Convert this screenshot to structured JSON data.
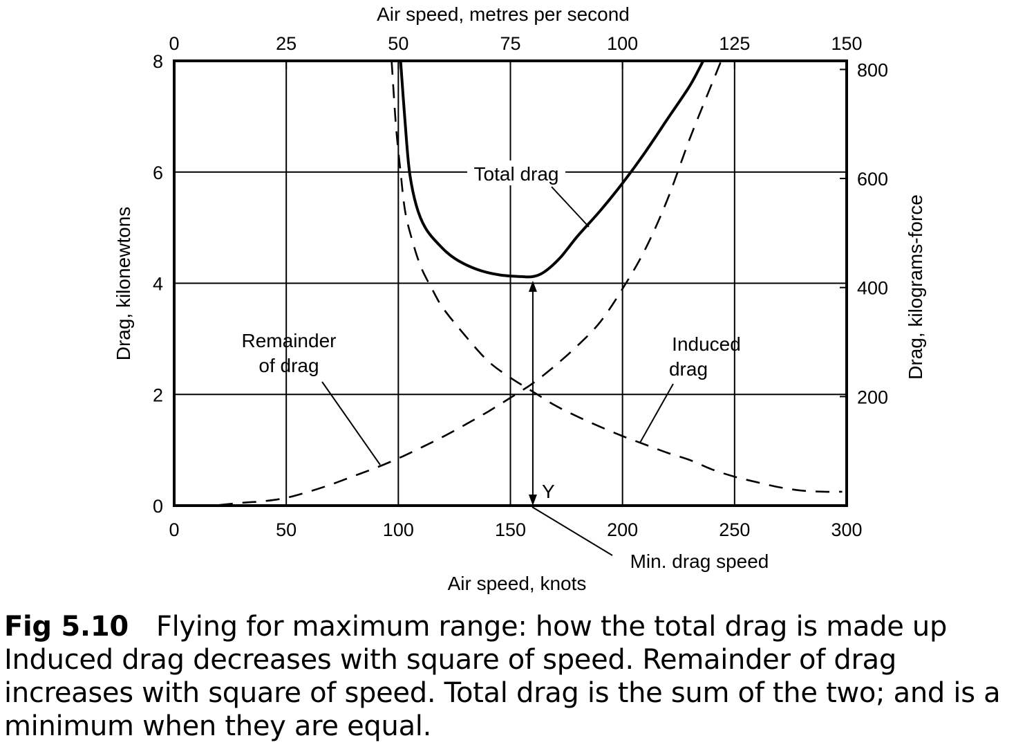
{
  "chart_data": {
    "type": "line",
    "x_axis_bottom": {
      "label": "Air speed, knots",
      "range": [
        0,
        300
      ],
      "ticks": [
        "0",
        "50",
        "100",
        "150",
        "200",
        "250",
        "300"
      ]
    },
    "x_axis_top": {
      "label": "Air speed, metres per second",
      "range": [
        0,
        150
      ],
      "ticks": [
        "0",
        "25",
        "50",
        "75",
        "100",
        "125",
        "150"
      ]
    },
    "y_axis_left": {
      "label": "Drag, kilonewtons",
      "range": [
        0,
        8
      ],
      "ticks": [
        "0",
        "2",
        "4",
        "6",
        "8"
      ]
    },
    "y_axis_right": {
      "label": "Drag, kilograms-force",
      "ticks": [
        "200",
        "400",
        "600",
        "800"
      ]
    },
    "grid": true,
    "series": [
      {
        "name": "Total drag",
        "style": "solid",
        "points": [
          [
            101,
            8.0
          ],
          [
            103,
            6.9
          ],
          [
            105,
            6.0
          ],
          [
            108,
            5.4
          ],
          [
            112,
            5.0
          ],
          [
            118,
            4.7
          ],
          [
            125,
            4.45
          ],
          [
            135,
            4.25
          ],
          [
            145,
            4.15
          ],
          [
            155,
            4.12
          ],
          [
            160,
            4.12
          ],
          [
            165,
            4.2
          ],
          [
            172,
            4.45
          ],
          [
            180,
            4.85
          ],
          [
            190,
            5.3
          ],
          [
            200,
            5.8
          ],
          [
            210,
            6.35
          ],
          [
            220,
            6.95
          ],
          [
            230,
            7.55
          ],
          [
            236,
            8.0
          ]
        ]
      },
      {
        "name": "Induced drag",
        "style": "dashed",
        "points": [
          [
            97,
            8.0
          ],
          [
            99,
            6.8
          ],
          [
            101,
            6.0
          ],
          [
            103,
            5.3
          ],
          [
            106,
            4.8
          ],
          [
            110,
            4.3
          ],
          [
            115,
            3.9
          ],
          [
            120,
            3.55
          ],
          [
            130,
            3.05
          ],
          [
            140,
            2.6
          ],
          [
            150,
            2.3
          ],
          [
            160,
            2.05
          ],
          [
            170,
            1.8
          ],
          [
            180,
            1.6
          ],
          [
            190,
            1.42
          ],
          [
            200,
            1.25
          ],
          [
            210,
            1.1
          ],
          [
            220,
            0.95
          ],
          [
            230,
            0.82
          ],
          [
            240,
            0.65
          ],
          [
            250,
            0.52
          ],
          [
            260,
            0.42
          ],
          [
            270,
            0.33
          ],
          [
            280,
            0.27
          ],
          [
            290,
            0.25
          ],
          [
            298,
            0.25
          ]
        ]
      },
      {
        "name": "Remainder of drag",
        "style": "dashed",
        "points": [
          [
            20,
            0.01
          ],
          [
            30,
            0.05
          ],
          [
            40,
            0.08
          ],
          [
            50,
            0.14
          ],
          [
            60,
            0.25
          ],
          [
            70,
            0.38
          ],
          [
            80,
            0.53
          ],
          [
            90,
            0.68
          ],
          [
            100,
            0.85
          ],
          [
            110,
            1.04
          ],
          [
            120,
            1.24
          ],
          [
            130,
            1.46
          ],
          [
            140,
            1.69
          ],
          [
            150,
            1.94
          ],
          [
            160,
            2.2
          ],
          [
            170,
            2.52
          ],
          [
            180,
            2.88
          ],
          [
            190,
            3.3
          ],
          [
            200,
            3.9
          ],
          [
            210,
            4.6
          ],
          [
            220,
            5.5
          ],
          [
            230,
            6.6
          ],
          [
            240,
            7.6
          ],
          [
            244,
            8.0
          ]
        ]
      }
    ],
    "annotations": {
      "total_drag": "Total drag",
      "induced_drag": [
        "Induced",
        "drag"
      ],
      "remainder_of_drag": [
        "Remainder",
        "of drag"
      ],
      "y_marker": "Y",
      "min_drag_speed": "Min. drag speed",
      "min_drag_x": 160,
      "min_drag_y": 4.12
    }
  },
  "caption": {
    "figure_label": "Fig 5.10",
    "title": "Flying for maximum range: how the total drag is made up",
    "body": "Induced drag decreases with square of speed. Remainder of drag increases with square of speed. Total drag is the sum of the two; and is a minimum when they are equal."
  }
}
